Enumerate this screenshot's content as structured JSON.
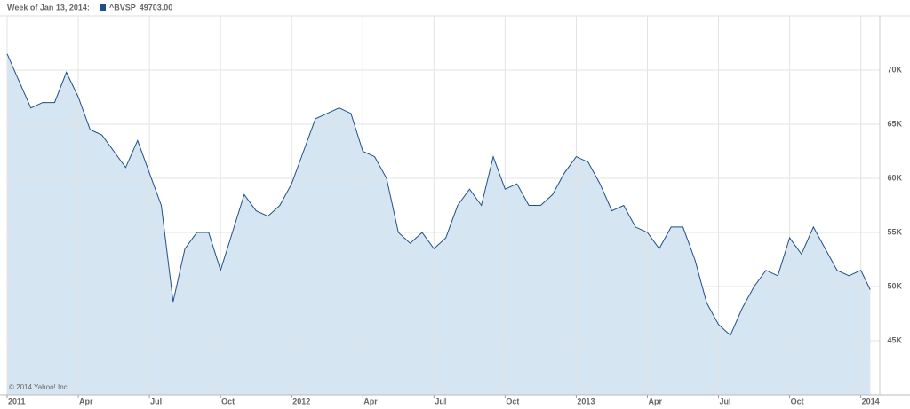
{
  "chart_data": {
    "type": "area",
    "header_label": "Week of Jan 13, 2014:",
    "current": {
      "value": 49703,
      "label": "49703.00"
    },
    "credit": "© 2014 Yahoo! Inc.",
    "x": [
      0,
      0.5,
      1,
      1.5,
      2,
      2.5,
      3,
      3.5,
      4,
      4.5,
      5,
      5.5,
      6,
      6.5,
      7,
      7.5,
      8,
      8.5,
      9,
      9.5,
      10,
      10.5,
      11,
      11.5,
      12,
      12.5,
      13,
      13.5,
      14,
      14.5,
      15,
      15.5,
      16,
      16.5,
      17,
      17.5,
      18,
      18.5,
      19,
      19.5,
      20,
      20.5,
      21,
      21.5,
      22,
      22.5,
      23,
      23.5,
      24,
      24.5,
      25,
      25.5,
      26,
      26.5,
      27,
      27.5,
      28,
      28.5,
      29,
      29.5,
      30,
      30.5,
      31,
      31.5,
      32,
      32.5,
      33,
      33.5,
      34,
      34.5,
      35,
      35.5,
      36,
      36.4
    ],
    "series": [
      {
        "name": "^BVSP",
        "color": "#1f4f8b",
        "fill": "#d5e5f1",
        "values": [
          71500,
          69000,
          66500,
          67000,
          67000,
          69800,
          67500,
          64500,
          64000,
          62500,
          61000,
          63500,
          60500,
          57500,
          48600,
          53500,
          55000,
          55000,
          51500,
          55000,
          58500,
          57000,
          56500,
          57500,
          59500,
          62500,
          65500,
          66000,
          66500,
          66000,
          62500,
          62000,
          60000,
          55000,
          54000,
          55000,
          53500,
          54500,
          57500,
          59000,
          57500,
          62000,
          59000,
          59500,
          57500,
          57500,
          58500,
          60500,
          62000,
          61500,
          59500,
          57000,
          57500,
          55500,
          55000,
          53500,
          55500,
          55500,
          52500,
          48500,
          46500,
          45500,
          48000,
          50000,
          51500,
          51000,
          54500,
          53000,
          55500,
          53500,
          51500,
          51000,
          51500,
          49703
        ]
      }
    ],
    "xlim": [
      0,
      36.8
    ],
    "xticks": [
      {
        "value": 0,
        "label": "2011"
      },
      {
        "value": 3,
        "label": "Apr"
      },
      {
        "value": 6,
        "label": "Jul"
      },
      {
        "value": 9,
        "label": "Oct"
      },
      {
        "value": 12,
        "label": "2012"
      },
      {
        "value": 15,
        "label": "Apr"
      },
      {
        "value": 18,
        "label": "Jul"
      },
      {
        "value": 21,
        "label": "Oct"
      },
      {
        "value": 24,
        "label": "2013"
      },
      {
        "value": 27,
        "label": "Apr"
      },
      {
        "value": 30,
        "label": "Jul"
      },
      {
        "value": 33,
        "label": "Oct"
      },
      {
        "value": 36,
        "label": "2014"
      }
    ],
    "ylim": [
      40000,
      75000
    ],
    "yticks": [
      {
        "value": 45000,
        "label": "45K"
      },
      {
        "value": 50000,
        "label": "50K"
      },
      {
        "value": 55000,
        "label": "55K"
      },
      {
        "value": 60000,
        "label": "60K"
      },
      {
        "value": 65000,
        "label": "65K"
      },
      {
        "value": 70000,
        "label": "70K"
      }
    ],
    "grid": true
  }
}
